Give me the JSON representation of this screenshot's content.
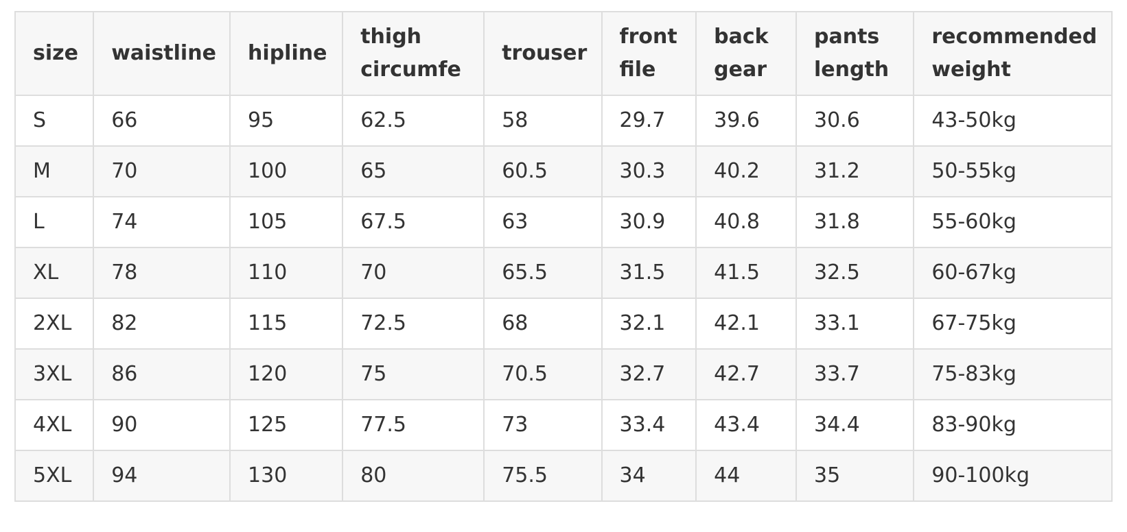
{
  "table": {
    "headers": [
      "size",
      "waistline",
      "hipline",
      "thigh circumfe",
      "trouser",
      "front file",
      "back gear",
      "pants length",
      "recommended weight"
    ],
    "rows": [
      [
        "S",
        "66",
        "95",
        "62.5",
        "58",
        "29.7",
        "39.6",
        "30.6",
        "43-50kg"
      ],
      [
        "M",
        "70",
        "100",
        "65",
        "60.5",
        "30.3",
        "40.2",
        "31.2",
        "50-55kg"
      ],
      [
        "L",
        "74",
        "105",
        "67.5",
        "63",
        "30.9",
        "40.8",
        "31.8",
        "55-60kg"
      ],
      [
        "XL",
        "78",
        "110",
        "70",
        "65.5",
        "31.5",
        "41.5",
        "32.5",
        "60-67kg"
      ],
      [
        "2XL",
        "82",
        "115",
        "72.5",
        "68",
        "32.1",
        "42.1",
        "33.1",
        "67-75kg"
      ],
      [
        "3XL",
        "86",
        "120",
        "75",
        "70.5",
        "32.7",
        "42.7",
        "33.7",
        "75-83kg"
      ],
      [
        "4XL",
        "90",
        "125",
        "77.5",
        "73",
        "33.4",
        "43.4",
        "34.4",
        "83-90kg"
      ],
      [
        "5XL",
        "94",
        "130",
        "80",
        "75.5",
        "34",
        "44",
        "35",
        "90-100kg"
      ]
    ]
  },
  "colors": {
    "border": "#dddddd",
    "header_bg": "#f7f7f7",
    "stripe_bg": "#f7f7f7",
    "text": "#333333"
  }
}
